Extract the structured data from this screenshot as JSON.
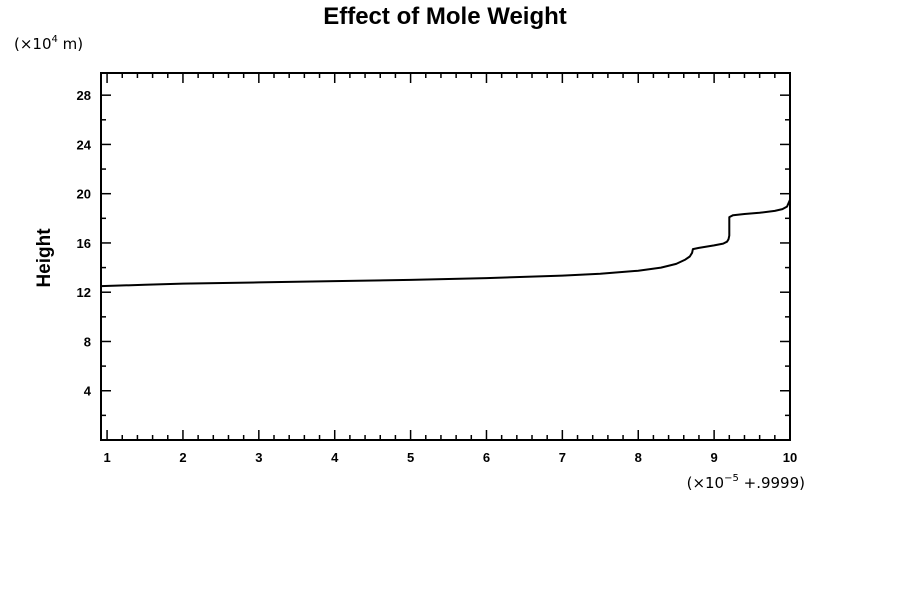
{
  "chart_data": {
    "type": "line",
    "title": "Effect of Mole Weight",
    "xlabel": "",
    "ylabel": "Height",
    "y_scale_note": {
      "prefix": "(×10",
      "exponent": "4",
      "suffix": " m)"
    },
    "x_scale_note": {
      "prefix": "(×10",
      "exponent": "−5",
      "suffix": " +.9999)"
    },
    "xlim": [
      0.92,
      10
    ],
    "ylim": [
      0,
      29.8
    ],
    "x_ticks_major": [
      1,
      2,
      3,
      4,
      5,
      6,
      7,
      8,
      9,
      10
    ],
    "x_tick_labels": [
      "1",
      "2",
      "3",
      "4",
      "5",
      "6",
      "7",
      "8",
      "9",
      "10"
    ],
    "x_minor_step": 0.2,
    "y_ticks_major": [
      4,
      8,
      12,
      16,
      20,
      24,
      28
    ],
    "y_tick_labels": [
      "4",
      "8",
      "12",
      "16",
      "20",
      "24",
      "28"
    ],
    "y_minor_step": 2,
    "grid": false,
    "legend": "none",
    "series": [
      {
        "name": "Height",
        "color": "#000000",
        "x": [
          0.92,
          1.5,
          2.0,
          3.0,
          4.0,
          5.0,
          6.0,
          7.0,
          7.5,
          8.0,
          8.3,
          8.5,
          8.62,
          8.68,
          8.71,
          8.72,
          8.8,
          9.0,
          9.12,
          9.17,
          9.19,
          9.2,
          9.2,
          9.25,
          9.4,
          9.6,
          9.8,
          9.9,
          9.96,
          10.0
        ],
        "y": [
          12.5,
          12.6,
          12.7,
          12.8,
          12.9,
          13.0,
          13.15,
          13.35,
          13.5,
          13.75,
          14.0,
          14.3,
          14.65,
          14.9,
          15.2,
          15.5,
          15.6,
          15.8,
          15.95,
          16.1,
          16.3,
          16.6,
          18.1,
          18.25,
          18.35,
          18.45,
          18.6,
          18.75,
          18.95,
          19.5
        ]
      }
    ]
  }
}
